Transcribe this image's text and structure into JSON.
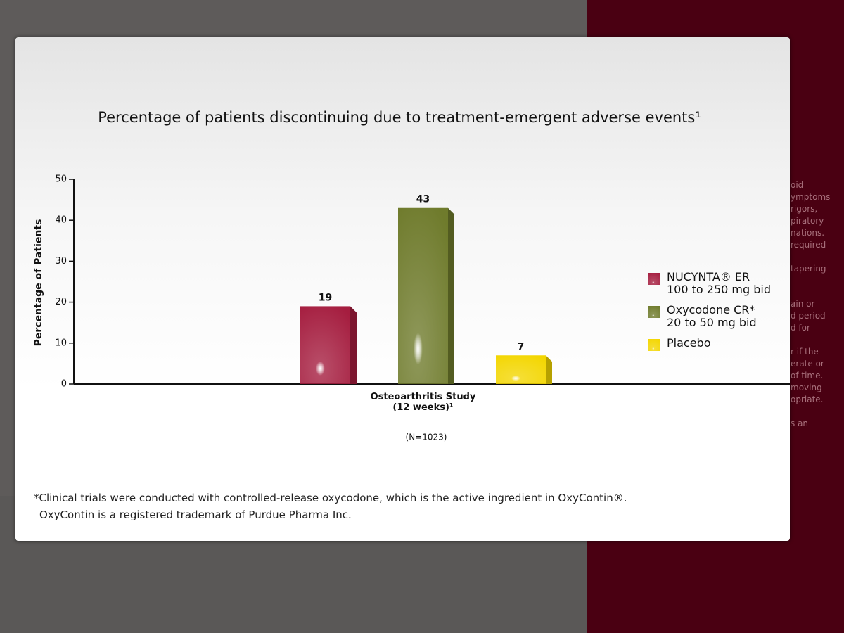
{
  "chart_data": {
    "type": "bar",
    "title": "Percentage of patients discontinuing due to treatment-emergent adverse events¹",
    "y_label": "Percentage of Patients",
    "categories": [
      "Osteoarthritis Study\n(12 weeks)¹"
    ],
    "annotation": "(N=1023)",
    "series": [
      {
        "name": "NUCYNTA® ER\n100 to 250 mg bid",
        "color": "#a51d3f",
        "values": [
          19
        ]
      },
      {
        "name": "Oxycodone CR*\n20 to 50 mg bid",
        "color": "#6f7b2c",
        "values": [
          43
        ]
      },
      {
        "name": "Placebo",
        "color": "#f3d600",
        "values": [
          7
        ]
      }
    ],
    "ylim": [
      0,
      50
    ],
    "yticks": [
      0,
      10,
      20,
      30,
      40,
      50
    ],
    "grid": false,
    "legend": "right"
  },
  "footnote": [
    "*Clinical trials were conducted with controlled-release oxycodone, which is the active ingredient in OxyContin®.",
    "OxyContin is a registered trademark of Purdue Pharma Inc."
  ],
  "background_text": [
    "oid",
    "ymptoms",
    "rigors,",
    "piratory",
    "nations.",
    "required",
    "tapering",
    "ain or",
    "d period",
    "d for",
    "r if the",
    "erate or",
    "of time.",
    "moving",
    "opriate.",
    "s an"
  ]
}
